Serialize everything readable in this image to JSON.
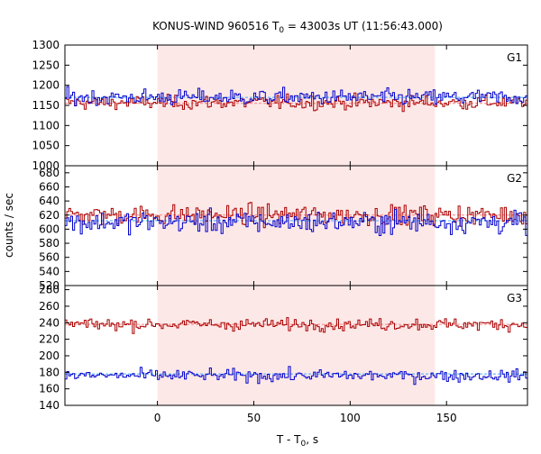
{
  "chart_data": {
    "type": "line",
    "title": "KONUS-WIND 960516 T",
    "title_sub": "0",
    "title_rest": " = 43003s UT (11:56:43.000)",
    "xlabel": "T - T",
    "xlabel_sub": "0",
    "xlabel_rest": ", s",
    "ylabel": "counts / sec",
    "xlim": [
      -48,
      192
    ],
    "x_ticks": [
      0,
      50,
      100,
      150
    ],
    "highlight_interval": [
      0,
      144
    ],
    "highlight_color": "#fde8e8",
    "series_colors": {
      "red": "#aa0000",
      "blue": "#0000cc"
    },
    "panels": [
      {
        "name": "G1",
        "ylim": [
          1000,
          1300
        ],
        "y_ticks": [
          1000,
          1050,
          1100,
          1150,
          1200,
          1250,
          1300
        ],
        "red_level": 1157,
        "blue_level": 1170,
        "red_std": 22,
        "blue_std": 25,
        "ref_red": 1155,
        "ref_blue": 1170
      },
      {
        "name": "G2",
        "ylim": [
          520,
          690
        ],
        "y_ticks": [
          520,
          540,
          560,
          580,
          600,
          620,
          640,
          660,
          680
        ],
        "red_level": 620,
        "blue_level": 610,
        "red_std": 18,
        "blue_std": 20,
        "ref_red": 620,
        "ref_blue": 612
      },
      {
        "name": "G3",
        "ylim": [
          140,
          285
        ],
        "y_ticks": [
          140,
          160,
          180,
          200,
          220,
          240,
          260,
          280
        ],
        "red_level": 238,
        "blue_level": 176,
        "red_std": 9,
        "blue_std": 9,
        "ref_red": 238,
        "ref_blue": 178
      }
    ]
  }
}
